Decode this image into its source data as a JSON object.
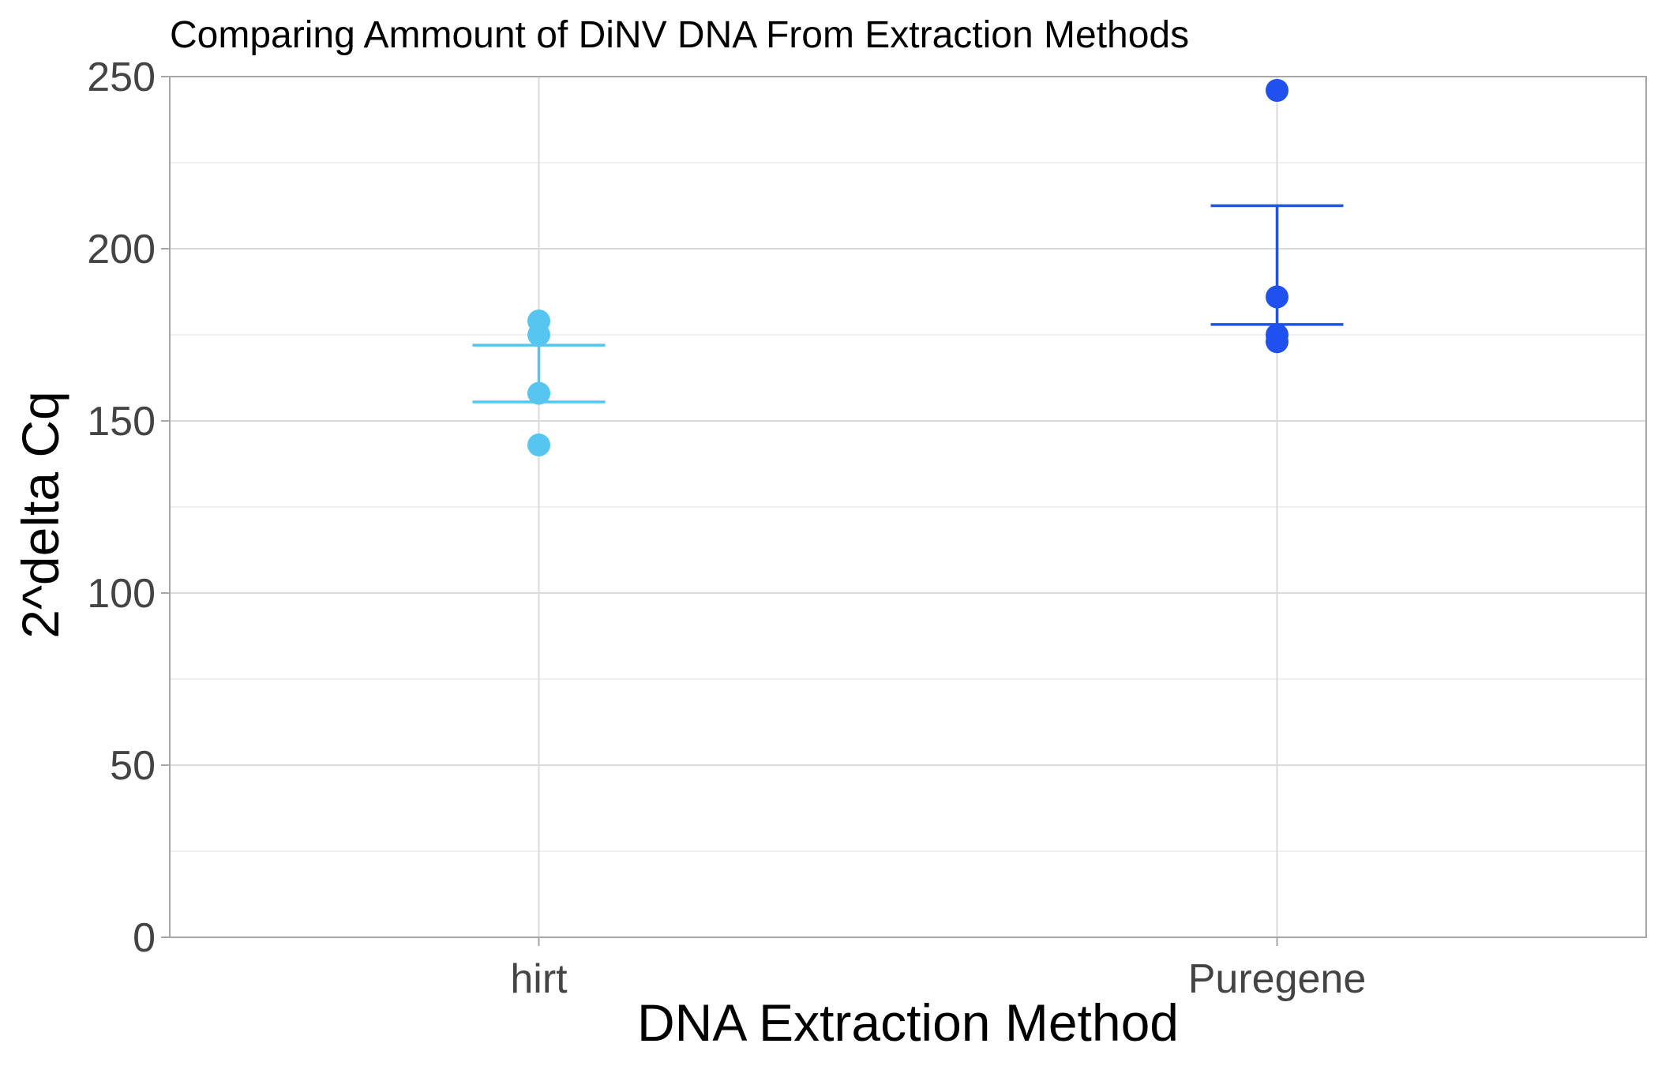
{
  "chart_data": {
    "type": "scatter",
    "title": "Comparing Ammount of DiNV DNA From Extraction Methods",
    "xlabel": "DNA Extraction Method",
    "ylabel": "2^delta Cq",
    "ylim": [
      0,
      250
    ],
    "yticks": [
      "0",
      "50",
      "100",
      "150",
      "200",
      "250"
    ],
    "categories": [
      "hirt",
      "Puregene"
    ],
    "grid": true,
    "series": [
      {
        "category": "hirt",
        "color": "#56c5f0",
        "points": [
          143,
          158,
          175,
          179
        ],
        "error_bar": {
          "low": 155.5,
          "high": 172
        }
      },
      {
        "category": "Puregene",
        "color": "#2050ee",
        "points": [
          173,
          175,
          186,
          246
        ],
        "error_bar": {
          "low": 178,
          "high": 212.5
        }
      }
    ]
  }
}
